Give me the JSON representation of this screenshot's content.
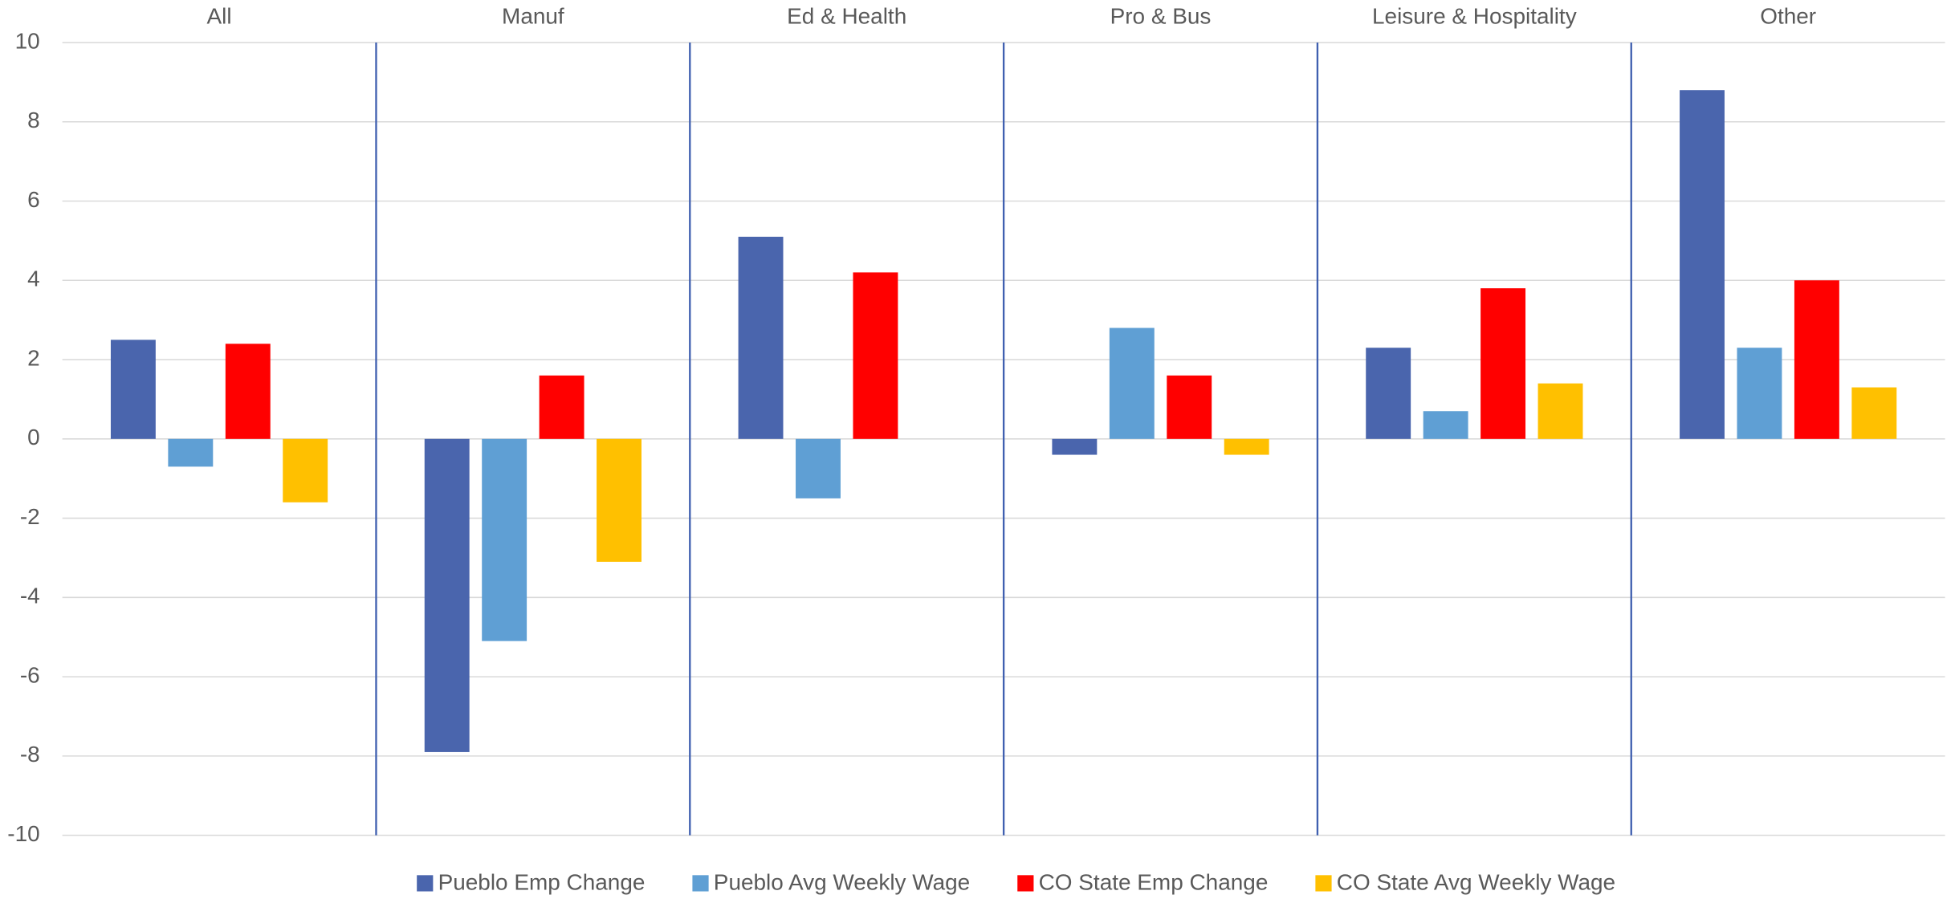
{
  "chart_data": {
    "type": "bar",
    "categories": [
      "All",
      "Manuf",
      "Ed & Health",
      "Pro & Bus",
      "Leisure & Hospitality",
      "Other"
    ],
    "series": [
      {
        "name": "Pueblo Emp Change",
        "color": "#4a65ad",
        "values": [
          2.5,
          -7.9,
          5.1,
          -0.4,
          2.3,
          8.8
        ]
      },
      {
        "name": "Pueblo Avg Weekly Wage",
        "color": "#5f9fd4",
        "values": [
          -0.7,
          -5.1,
          -1.5,
          2.8,
          0.7,
          2.3
        ]
      },
      {
        "name": "CO State Emp Change",
        "color": "#ff0000",
        "values": [
          2.4,
          1.6,
          4.2,
          1.6,
          3.8,
          4.0
        ]
      },
      {
        "name": "CO State Avg Weekly Wage",
        "color": "#ffc000",
        "values": [
          -1.6,
          -3.1,
          0,
          -0.4,
          1.4,
          1.3
        ]
      }
    ],
    "ylim": [
      -10,
      10
    ],
    "yticks": [
      -10,
      -8,
      -6,
      -4,
      -2,
      0,
      2,
      4,
      6,
      8,
      10
    ],
    "grid": true,
    "legend": "bottom"
  }
}
